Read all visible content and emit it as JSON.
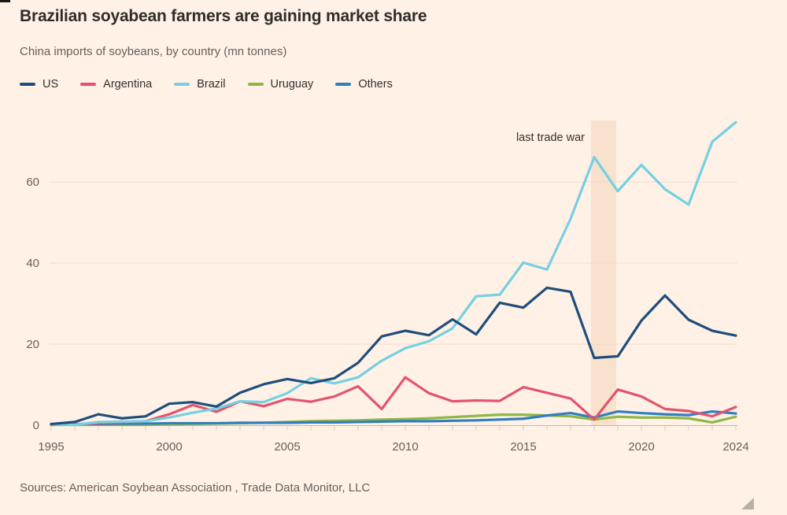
{
  "page": {
    "background": "#fff1e5"
  },
  "header": {
    "title": "Brazilian soyabean farmers are gaining market share",
    "subtitle": "China imports of soybeans, by country (mn tonnes)"
  },
  "legend": [
    {
      "label": "US",
      "color": "#1f4d7c"
    },
    {
      "label": "Argentina",
      "color": "#e2546f"
    },
    {
      "label": "Brazil",
      "color": "#74d0e2"
    },
    {
      "label": "Uruguay",
      "color": "#8fb747"
    },
    {
      "label": "Others",
      "color": "#2f7fc0"
    }
  ],
  "chart_data": {
    "type": "line",
    "title": "Brazilian soyabean farmers are gaining market share",
    "subtitle": "China imports of soybeans, by country (mn tonnes)",
    "xlabel": "",
    "ylabel": "mn tonnes",
    "xlim": [
      1995,
      2024
    ],
    "ylim": [
      0,
      76
    ],
    "grid": "horizontal",
    "legend_position": "top",
    "xticks": [
      1995,
      2000,
      2005,
      2010,
      2015,
      2020,
      2024
    ],
    "yticks": [
      0,
      20,
      40,
      60
    ],
    "x": [
      1995,
      1996,
      1997,
      1998,
      1999,
      2000,
      2001,
      2002,
      2003,
      2004,
      2005,
      2006,
      2007,
      2008,
      2009,
      2010,
      2011,
      2012,
      2013,
      2014,
      2015,
      2016,
      2017,
      2018,
      2019,
      2020,
      2021,
      2022,
      2023,
      2024
    ],
    "series": [
      {
        "name": "US",
        "color": "#1f4d7c",
        "values": [
          0.3,
          0.8,
          2.7,
          1.7,
          2.2,
          5.3,
          5.7,
          4.6,
          8.0,
          10.1,
          11.4,
          10.4,
          11.6,
          15.4,
          21.9,
          23.3,
          22.2,
          26.1,
          22.4,
          30.2,
          29.0,
          33.9,
          32.9,
          16.6,
          17.0,
          25.8,
          32.0,
          26.0,
          23.3,
          22.1
        ]
      },
      {
        "name": "Argentina",
        "color": "#e2546f",
        "values": [
          0.1,
          0.2,
          0.5,
          0.7,
          1.0,
          2.7,
          5.0,
          3.3,
          5.9,
          4.7,
          6.5,
          5.8,
          7.1,
          9.6,
          4.0,
          11.8,
          7.9,
          5.9,
          6.1,
          6.0,
          9.4,
          8.0,
          6.6,
          1.4,
          8.8,
          7.1,
          4.0,
          3.5,
          2.2,
          4.5
        ]
      },
      {
        "name": "Brazil",
        "color": "#74d0e2",
        "values": [
          0.2,
          0.1,
          0.8,
          0.9,
          1.0,
          1.9,
          3.1,
          4.1,
          5.9,
          5.7,
          7.9,
          11.6,
          10.3,
          11.8,
          15.9,
          19.0,
          20.7,
          23.9,
          31.8,
          32.2,
          40.1,
          38.4,
          50.9,
          66.1,
          57.7,
          64.2,
          58.2,
          54.4,
          69.9,
          74.7
        ]
      },
      {
        "name": "Uruguay",
        "color": "#8fb747",
        "values": [
          0.1,
          0.1,
          0.1,
          0.1,
          0.1,
          0.2,
          0.3,
          0.4,
          0.5,
          0.6,
          0.8,
          1.0,
          1.1,
          1.2,
          1.4,
          1.5,
          1.7,
          2.0,
          2.3,
          2.6,
          2.6,
          2.4,
          2.2,
          1.4,
          2.1,
          1.9,
          1.9,
          1.7,
          0.7,
          2.1
        ]
      },
      {
        "name": "Others",
        "color": "#2f7fc0",
        "values": [
          0.2,
          0.3,
          0.3,
          0.4,
          0.4,
          0.5,
          0.5,
          0.5,
          0.6,
          0.6,
          0.6,
          0.7,
          0.7,
          0.8,
          0.9,
          1.0,
          1.0,
          1.1,
          1.2,
          1.4,
          1.6,
          2.4,
          3.0,
          1.9,
          3.4,
          3.0,
          2.7,
          2.5,
          3.4,
          2.9
        ]
      }
    ],
    "annotation": {
      "text": "last trade war",
      "band_x": [
        2018,
        2019
      ],
      "band_color": "#f8e1cd"
    }
  },
  "footer": {
    "sources": "Sources: American Soybean Association , Trade Data Monitor, LLC"
  }
}
